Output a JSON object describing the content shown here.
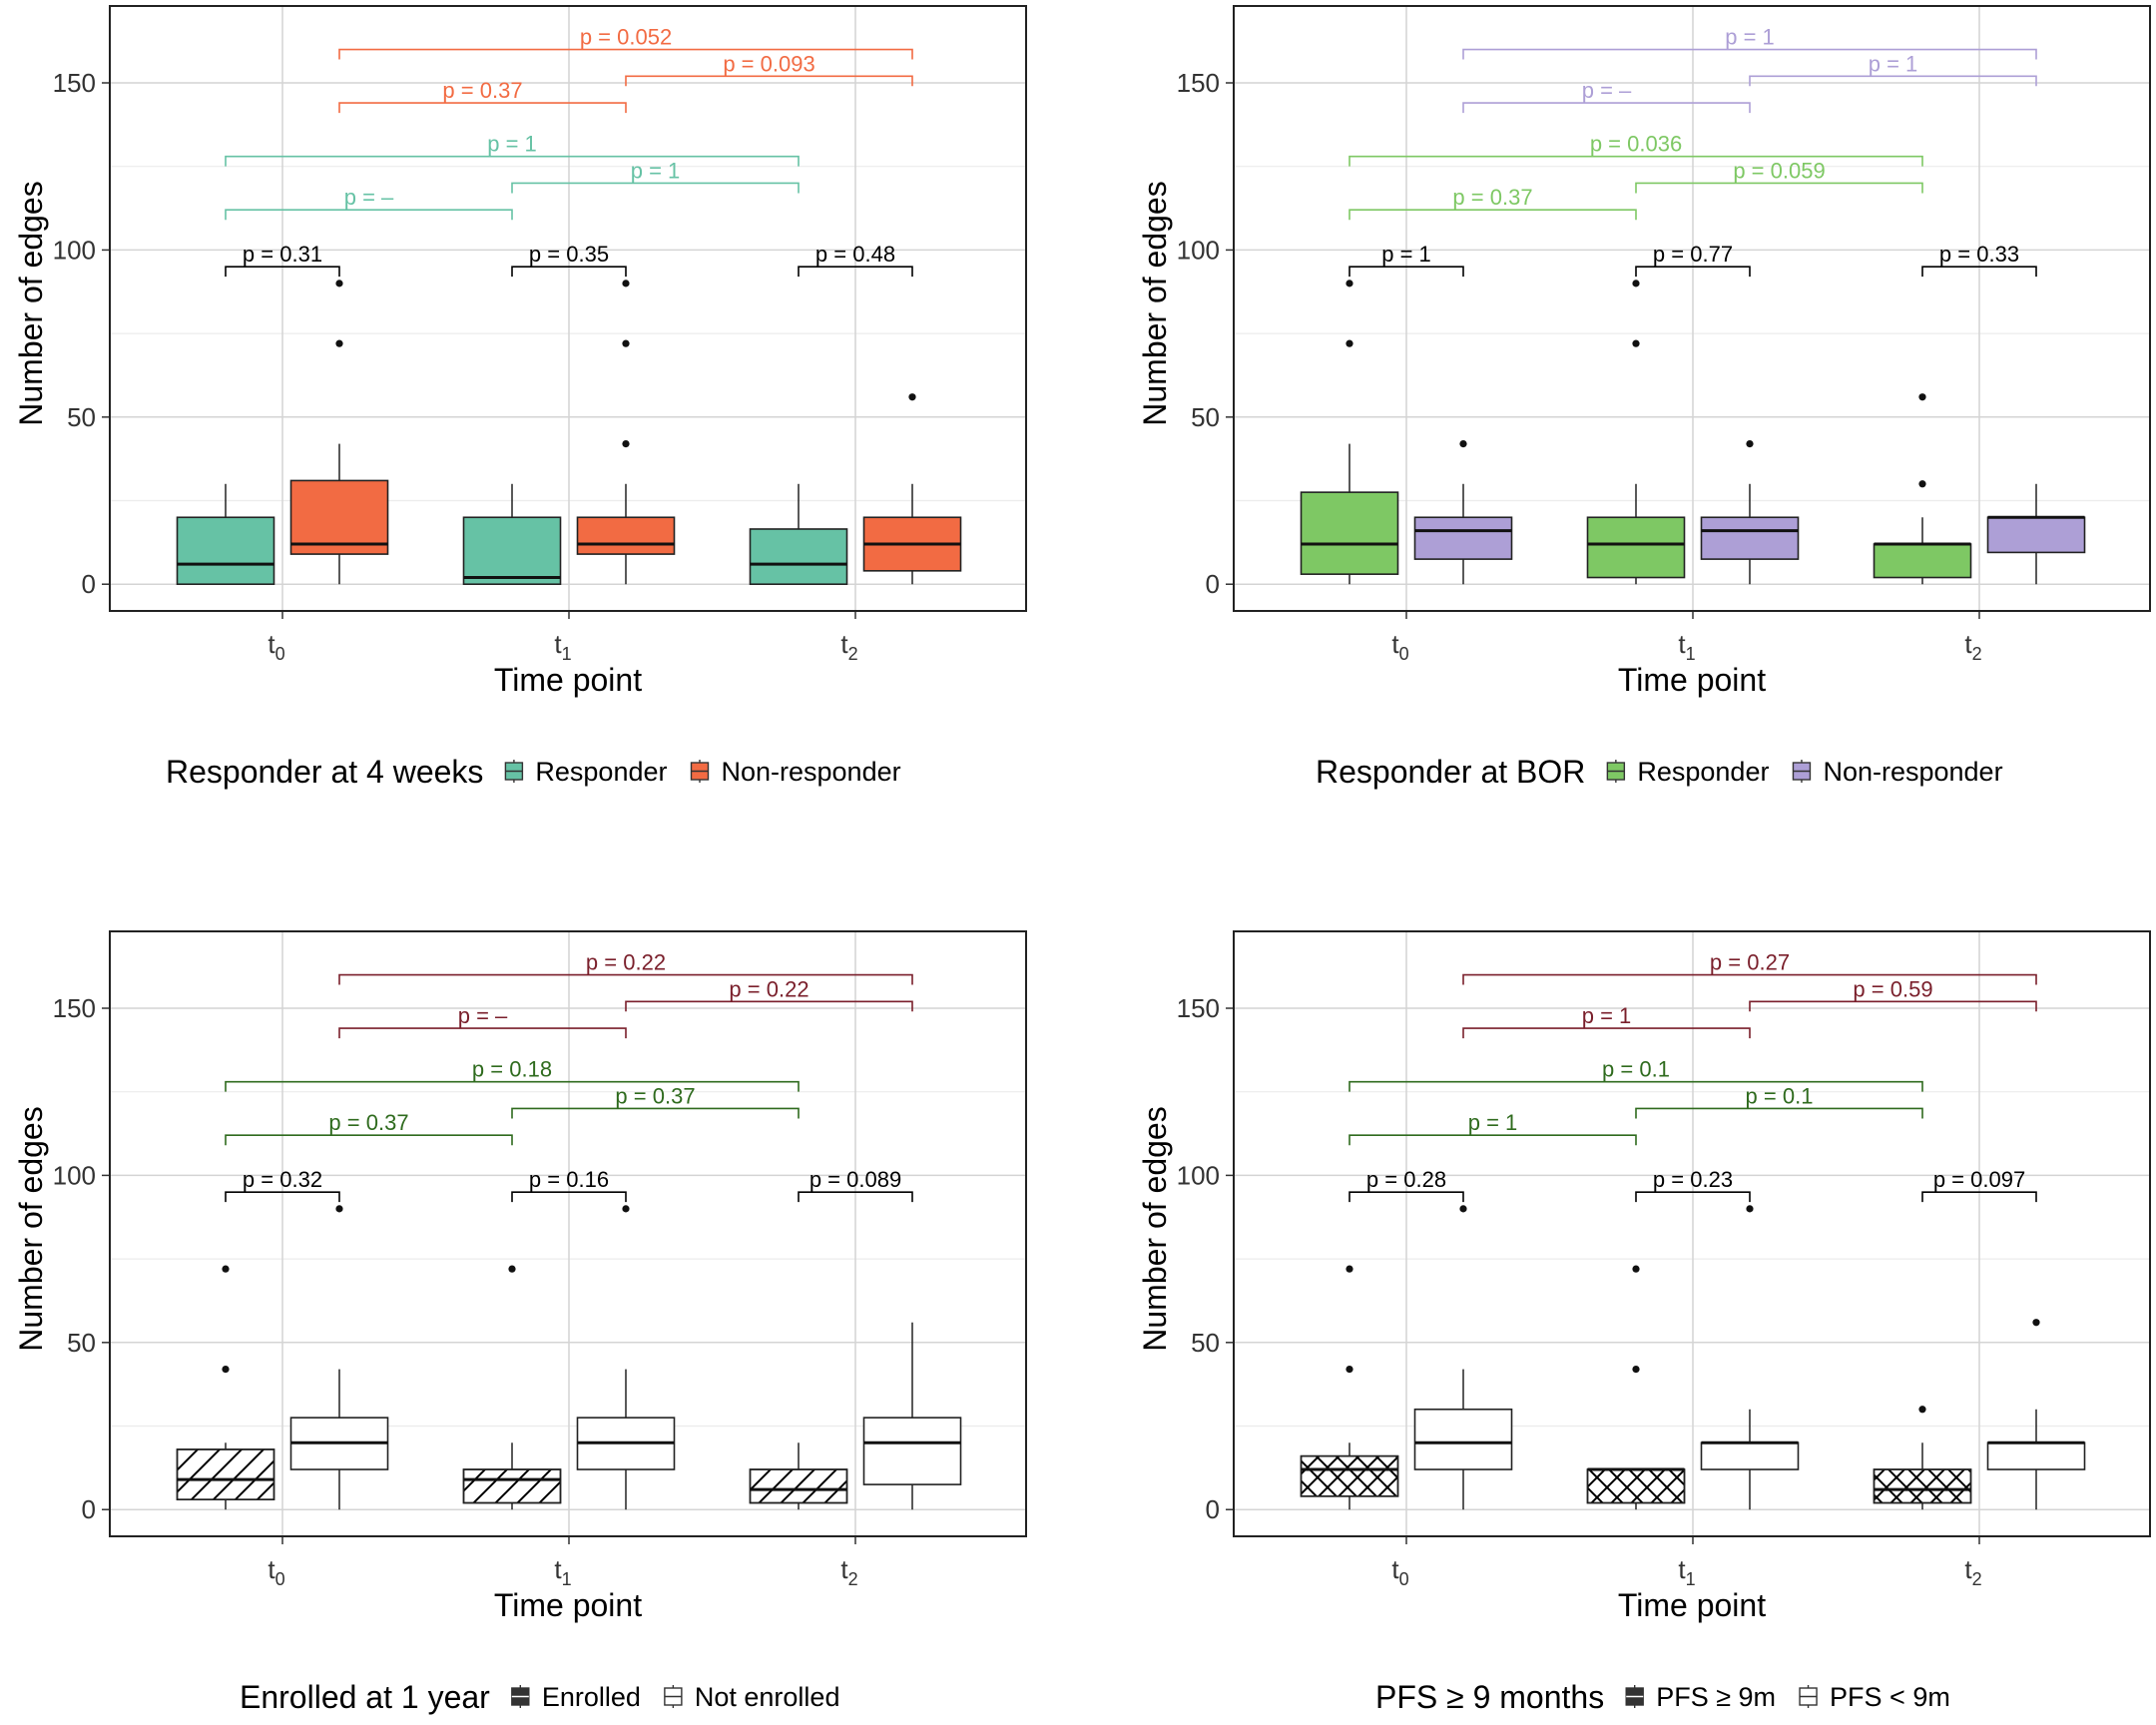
{
  "chart_data": [
    {
      "type": "box",
      "id": "resp4w",
      "xlabel": "Time point",
      "ylabel": "Number of edges",
      "ylim": [
        -8,
        173
      ],
      "yticks": [
        0,
        50,
        100,
        150
      ],
      "categories": [
        {
          "base": "t",
          "sub": "0"
        },
        {
          "base": "t",
          "sub": "1"
        },
        {
          "base": "t",
          "sub": "2"
        }
      ],
      "legend": {
        "title": "Responder at 4 weeks",
        "items": [
          "Responder",
          "Non-responder"
        ]
      },
      "groups": [
        {
          "name": "Responder",
          "fill": "#66c2a5",
          "pattern": "none",
          "boxes": [
            {
              "q1": 0,
              "median": 6,
              "q3": 20,
              "lower": 0,
              "upper": 30,
              "outliers": []
            },
            {
              "q1": 0,
              "median": 2,
              "q3": 20,
              "lower": 0,
              "upper": 30,
              "outliers": []
            },
            {
              "q1": 0,
              "median": 6,
              "q3": 16.5,
              "lower": 0,
              "upper": 30,
              "outliers": []
            }
          ]
        },
        {
          "name": "Non-responder",
          "fill": "#f26b43",
          "pattern": "none",
          "boxes": [
            {
              "q1": 9,
              "median": 12,
              "q3": 31,
              "lower": 0,
              "upper": 42,
              "outliers": [
                72,
                90
              ]
            },
            {
              "q1": 9,
              "median": 12,
              "q3": 20,
              "lower": 0,
              "upper": 30,
              "outliers": [
                42,
                72,
                90
              ]
            },
            {
              "q1": 4,
              "median": 12,
              "q3": 20,
              "lower": 0,
              "upper": 30,
              "outliers": [
                56
              ]
            }
          ]
        }
      ],
      "comparisons": [
        {
          "label": "p = 0.31",
          "from": [
            0,
            0
          ],
          "to": [
            0,
            1
          ],
          "y": 95,
          "color": "#000000"
        },
        {
          "label": "p = 0.35",
          "from": [
            1,
            0
          ],
          "to": [
            1,
            1
          ],
          "y": 95,
          "color": "#000000"
        },
        {
          "label": "p = 0.48",
          "from": [
            2,
            0
          ],
          "to": [
            2,
            1
          ],
          "y": 95,
          "color": "#000000"
        },
        {
          "label": "p = –",
          "from": [
            0,
            0
          ],
          "to": [
            1,
            0
          ],
          "y": 112,
          "color": "#66c2a5"
        },
        {
          "label": "p = 1",
          "from": [
            1,
            0
          ],
          "to": [
            2,
            0
          ],
          "y": 120,
          "color": "#66c2a5"
        },
        {
          "label": "p = 1",
          "from": [
            0,
            0
          ],
          "to": [
            2,
            0
          ],
          "y": 128,
          "color": "#66c2a5"
        },
        {
          "label": "p = 0.37",
          "from": [
            0,
            1
          ],
          "to": [
            1,
            1
          ],
          "y": 144,
          "color": "#f26b43"
        },
        {
          "label": "p = 0.093",
          "from": [
            1,
            1
          ],
          "to": [
            2,
            1
          ],
          "y": 152,
          "color": "#f26b43"
        },
        {
          "label": "p = 0.052",
          "from": [
            0,
            1
          ],
          "to": [
            2,
            1
          ],
          "y": 160,
          "color": "#f26b43"
        }
      ]
    },
    {
      "type": "box",
      "id": "respbor",
      "xlabel": "Time point",
      "ylabel": "Number of edges",
      "ylim": [
        -8,
        173
      ],
      "yticks": [
        0,
        50,
        100,
        150
      ],
      "categories": [
        {
          "base": "t",
          "sub": "0"
        },
        {
          "base": "t",
          "sub": "1"
        },
        {
          "base": "t",
          "sub": "2"
        }
      ],
      "legend": {
        "title": "Responder at BOR",
        "items": [
          "Responder",
          "Non-responder"
        ]
      },
      "groups": [
        {
          "name": "Responder",
          "fill": "#7ec864",
          "pattern": "none",
          "boxes": [
            {
              "q1": 3,
              "median": 12,
              "q3": 27.5,
              "lower": 0,
              "upper": 42,
              "outliers": [
                72,
                90
              ]
            },
            {
              "q1": 2,
              "median": 12,
              "q3": 20,
              "lower": 0,
              "upper": 30,
              "outliers": [
                72,
                90
              ]
            },
            {
              "q1": 2,
              "median": 12,
              "q3": 12,
              "lower": 0,
              "upper": 20,
              "outliers": [
                30,
                56
              ]
            }
          ]
        },
        {
          "name": "Non-responder",
          "fill": "#ad9fd6",
          "pattern": "none",
          "boxes": [
            {
              "q1": 7.5,
              "median": 16,
              "q3": 20,
              "lower": 0,
              "upper": 30,
              "outliers": [
                42
              ]
            },
            {
              "q1": 7.5,
              "median": 16,
              "q3": 20,
              "lower": 0,
              "upper": 30,
              "outliers": [
                42
              ]
            },
            {
              "q1": 9.5,
              "median": 20,
              "q3": 20,
              "lower": 0,
              "upper": 30,
              "outliers": []
            }
          ]
        }
      ],
      "comparisons": [
        {
          "label": "p = 1",
          "from": [
            0,
            0
          ],
          "to": [
            0,
            1
          ],
          "y": 95,
          "color": "#000000"
        },
        {
          "label": "p = 0.77",
          "from": [
            1,
            0
          ],
          "to": [
            1,
            1
          ],
          "y": 95,
          "color": "#000000"
        },
        {
          "label": "p = 0.33",
          "from": [
            2,
            0
          ],
          "to": [
            2,
            1
          ],
          "y": 95,
          "color": "#000000"
        },
        {
          "label": "p = 0.37",
          "from": [
            0,
            0
          ],
          "to": [
            1,
            0
          ],
          "y": 112,
          "color": "#7ec864"
        },
        {
          "label": "p = 0.059",
          "from": [
            1,
            0
          ],
          "to": [
            2,
            0
          ],
          "y": 120,
          "color": "#7ec864"
        },
        {
          "label": "p = 0.036",
          "from": [
            0,
            0
          ],
          "to": [
            2,
            0
          ],
          "y": 128,
          "color": "#7ec864"
        },
        {
          "label": "p = –",
          "from": [
            0,
            1
          ],
          "to": [
            1,
            1
          ],
          "y": 144,
          "color": "#ad9fd6"
        },
        {
          "label": "p = 1",
          "from": [
            1,
            1
          ],
          "to": [
            2,
            1
          ],
          "y": 152,
          "color": "#ad9fd6"
        },
        {
          "label": "p = 1",
          "from": [
            0,
            1
          ],
          "to": [
            2,
            1
          ],
          "y": 160,
          "color": "#ad9fd6"
        }
      ]
    },
    {
      "type": "box",
      "id": "enrolled",
      "xlabel": "Time point",
      "ylabel": "Number of edges",
      "ylim": [
        -8,
        173
      ],
      "yticks": [
        0,
        50,
        100,
        150
      ],
      "categories": [
        {
          "base": "t",
          "sub": "0"
        },
        {
          "base": "t",
          "sub": "1"
        },
        {
          "base": "t",
          "sub": "2"
        }
      ],
      "legend": {
        "title": "Enrolled at 1 year",
        "items": [
          "Enrolled",
          "Not enrolled"
        ]
      },
      "groups": [
        {
          "name": "Enrolled",
          "fill": "#ffffff",
          "pattern": "stripe",
          "boxes": [
            {
              "q1": 3,
              "median": 9,
              "q3": 18,
              "lower": 0,
              "upper": 20,
              "outliers": [
                42,
                72
              ]
            },
            {
              "q1": 2,
              "median": 9,
              "q3": 12,
              "lower": 0,
              "upper": 20,
              "outliers": [
                72
              ]
            },
            {
              "q1": 2,
              "median": 6,
              "q3": 12,
              "lower": 0,
              "upper": 20,
              "outliers": []
            }
          ]
        },
        {
          "name": "Not enrolled",
          "fill": "#ffffff",
          "pattern": "none",
          "boxes": [
            {
              "q1": 12,
              "median": 20,
              "q3": 27.5,
              "lower": 0,
              "upper": 42,
              "outliers": [
                90
              ]
            },
            {
              "q1": 12,
              "median": 20,
              "q3": 27.5,
              "lower": 0,
              "upper": 42,
              "outliers": [
                90
              ]
            },
            {
              "q1": 7.5,
              "median": 20,
              "q3": 27.5,
              "lower": 0,
              "upper": 56,
              "outliers": []
            }
          ]
        }
      ],
      "comparisons": [
        {
          "label": "p = 0.32",
          "from": [
            0,
            0
          ],
          "to": [
            0,
            1
          ],
          "y": 95,
          "color": "#000000"
        },
        {
          "label": "p = 0.16",
          "from": [
            1,
            0
          ],
          "to": [
            1,
            1
          ],
          "y": 95,
          "color": "#000000"
        },
        {
          "label": "p = 0.089",
          "from": [
            2,
            0
          ],
          "to": [
            2,
            1
          ],
          "y": 95,
          "color": "#000000"
        },
        {
          "label": "p = 0.37",
          "from": [
            0,
            0
          ],
          "to": [
            1,
            0
          ],
          "y": 112,
          "color": "#2f6b1e"
        },
        {
          "label": "p = 0.37",
          "from": [
            1,
            0
          ],
          "to": [
            2,
            0
          ],
          "y": 120,
          "color": "#2f6b1e"
        },
        {
          "label": "p = 0.18",
          "from": [
            0,
            0
          ],
          "to": [
            2,
            0
          ],
          "y": 128,
          "color": "#2f6b1e"
        },
        {
          "label": "p = –",
          "from": [
            0,
            1
          ],
          "to": [
            1,
            1
          ],
          "y": 144,
          "color": "#7a1f2b"
        },
        {
          "label": "p = 0.22",
          "from": [
            1,
            1
          ],
          "to": [
            2,
            1
          ],
          "y": 152,
          "color": "#7a1f2b"
        },
        {
          "label": "p = 0.22",
          "from": [
            0,
            1
          ],
          "to": [
            2,
            1
          ],
          "y": 160,
          "color": "#7a1f2b"
        }
      ]
    },
    {
      "type": "box",
      "id": "pfs",
      "xlabel": "Time point",
      "ylabel": "Number of edges",
      "ylim": [
        -8,
        173
      ],
      "yticks": [
        0,
        50,
        100,
        150
      ],
      "categories": [
        {
          "base": "t",
          "sub": "0"
        },
        {
          "base": "t",
          "sub": "1"
        },
        {
          "base": "t",
          "sub": "2"
        }
      ],
      "legend": {
        "title": "PFS ≥ 9 months",
        "items": [
          "PFS ≥ 9m",
          "PFS < 9m"
        ]
      },
      "groups": [
        {
          "name": "PFS ≥ 9m",
          "fill": "#ffffff",
          "pattern": "crosshatch",
          "boxes": [
            {
              "q1": 4,
              "median": 12,
              "q3": 16,
              "lower": 0,
              "upper": 20,
              "outliers": [
                42,
                72
              ]
            },
            {
              "q1": 2,
              "median": 12,
              "q3": 12,
              "lower": 0,
              "upper": 12,
              "outliers": [
                42,
                72
              ]
            },
            {
              "q1": 2,
              "median": 6,
              "q3": 12,
              "lower": 0,
              "upper": 20,
              "outliers": [
                30
              ]
            }
          ]
        },
        {
          "name": "PFS < 9m",
          "fill": "#ffffff",
          "pattern": "none",
          "boxes": [
            {
              "q1": 12,
              "median": 20,
              "q3": 30,
              "lower": 0,
              "upper": 42,
              "outliers": [
                90
              ]
            },
            {
              "q1": 12,
              "median": 20,
              "q3": 20,
              "lower": 0,
              "upper": 30,
              "outliers": [
                90
              ]
            },
            {
              "q1": 12,
              "median": 20,
              "q3": 20,
              "lower": 0,
              "upper": 30,
              "outliers": [
                56
              ]
            }
          ]
        }
      ],
      "comparisons": [
        {
          "label": "p = 0.28",
          "from": [
            0,
            0
          ],
          "to": [
            0,
            1
          ],
          "y": 95,
          "color": "#000000"
        },
        {
          "label": "p = 0.23",
          "from": [
            1,
            0
          ],
          "to": [
            1,
            1
          ],
          "y": 95,
          "color": "#000000"
        },
        {
          "label": "p = 0.097",
          "from": [
            2,
            0
          ],
          "to": [
            2,
            1
          ],
          "y": 95,
          "color": "#000000"
        },
        {
          "label": "p = 1",
          "from": [
            0,
            0
          ],
          "to": [
            1,
            0
          ],
          "y": 112,
          "color": "#2f6b1e"
        },
        {
          "label": "p = 0.1",
          "from": [
            1,
            0
          ],
          "to": [
            2,
            0
          ],
          "y": 120,
          "color": "#2f6b1e"
        },
        {
          "label": "p = 0.1",
          "from": [
            0,
            0
          ],
          "to": [
            2,
            0
          ],
          "y": 128,
          "color": "#2f6b1e"
        },
        {
          "label": "p = 1",
          "from": [
            0,
            1
          ],
          "to": [
            1,
            1
          ],
          "y": 144,
          "color": "#7a1f2b"
        },
        {
          "label": "p = 0.59",
          "from": [
            1,
            1
          ],
          "to": [
            2,
            1
          ],
          "y": 152,
          "color": "#7a1f2b"
        },
        {
          "label": "p = 0.27",
          "from": [
            0,
            1
          ],
          "to": [
            2,
            1
          ],
          "y": 160,
          "color": "#7a1f2b"
        }
      ]
    }
  ]
}
